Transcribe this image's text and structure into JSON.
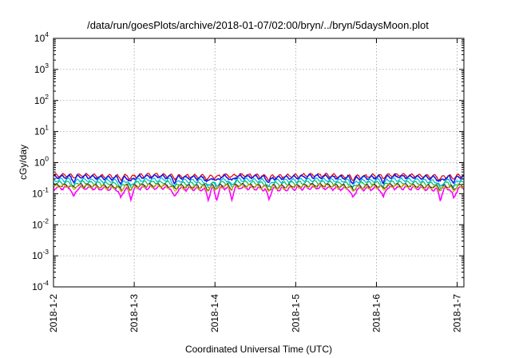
{
  "chart_data": {
    "type": "line",
    "title": "/data/run/goesPlots/archive/2018-01-07/02:00/bryn/../bryn/5daysMoon.plot",
    "xlabel": "Coordinated Universal Time (UTC)",
    "ylabel": "cGy/day",
    "yscale": "log",
    "ylim": [
      0.0001,
      10000
    ],
    "xlim": [
      "2018-01-02T00:00",
      "2018-01-07T02:00"
    ],
    "grid": true,
    "legend": "none",
    "y_ticks": [
      {
        "base": "10",
        "exp": "-4",
        "value": 0.0001
      },
      {
        "base": "10",
        "exp": "-3",
        "value": 0.001
      },
      {
        "base": "10",
        "exp": "-2",
        "value": 0.01
      },
      {
        "base": "10",
        "exp": "-1",
        "value": 0.1
      },
      {
        "base": "10",
        "exp": "0",
        "value": 1
      },
      {
        "base": "10",
        "exp": "1",
        "value": 10
      },
      {
        "base": "10",
        "exp": "2",
        "value": 100
      },
      {
        "base": "10",
        "exp": "3",
        "value": 1000
      },
      {
        "base": "10",
        "exp": "4",
        "value": 10000
      }
    ],
    "x_ticks": [
      {
        "label": "2018-1-2",
        "date": "2018-01-02T00:00"
      },
      {
        "label": "2018-1-3",
        "date": "2018-01-03T00:00"
      },
      {
        "label": "2018-1-4",
        "date": "2018-01-04T00:00"
      },
      {
        "label": "2018-1-5",
        "date": "2018-01-05T00:00"
      },
      {
        "label": "2018-1-6",
        "date": "2018-01-06T00:00"
      },
      {
        "label": "2018-1-7",
        "date": "2018-01-07T00:00"
      }
    ],
    "series": [
      {
        "color": "#e00000",
        "level": 0.38,
        "spike_depth": 0.15
      },
      {
        "color": "#1a1ae6",
        "level": 0.34,
        "spike_depth": 0.3
      },
      {
        "color": "#00b8e6",
        "level": 0.27,
        "spike_depth": 0.4
      },
      {
        "color": "#00c060",
        "level": 0.22,
        "spike_depth": 0.3
      },
      {
        "color": "#ff00ff",
        "level": 0.15,
        "spike_depth": 0.55
      },
      {
        "color": "#303030",
        "level": 0.18,
        "spike_depth": 0.2
      },
      {
        "color": "#d0b000",
        "level": 0.17,
        "spike_depth": 0.2
      }
    ],
    "dip_times": [
      "2018-01-02T06:00",
      "2018-01-02T20:00",
      "2018-01-02T23:00",
      "2018-01-03T12:00",
      "2018-01-03T22:00",
      "2018-01-04T00:30",
      "2018-01-04T05:00",
      "2018-01-04T16:00",
      "2018-01-05T17:00",
      "2018-01-06T02:00",
      "2018-01-06T19:00",
      "2018-01-06T23:00"
    ]
  }
}
